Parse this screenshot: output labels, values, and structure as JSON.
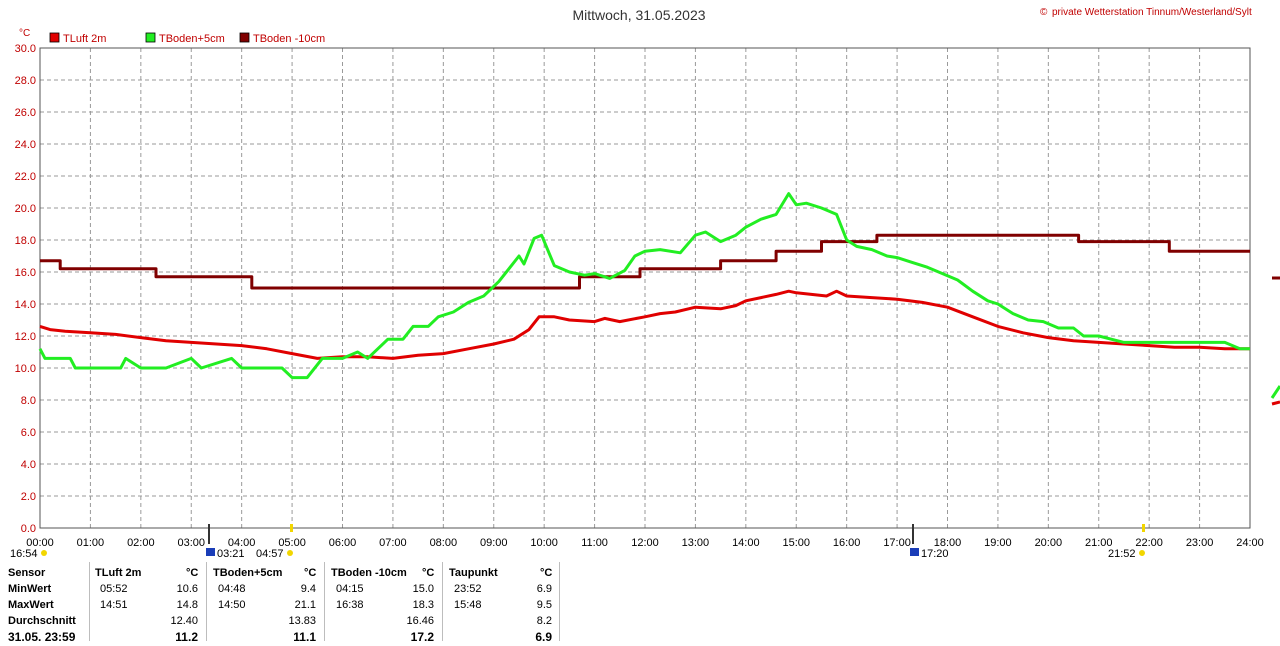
{
  "header": {
    "title": "Mittwoch, 31.05.2023",
    "copyright_symbol": "©",
    "credit": "private Wetterstation Tinnum/Westerland/Sylt"
  },
  "chart_data": {
    "type": "line",
    "y_unit": "°C",
    "ylim": [
      0,
      30
    ],
    "y_ticks": [
      "0.0",
      "2.0",
      "4.0",
      "6.0",
      "8.0",
      "10.0",
      "12.0",
      "14.0",
      "16.0",
      "18.0",
      "20.0",
      "22.0",
      "24.0",
      "26.0",
      "28.0",
      "30.0"
    ],
    "x_ticks": [
      "00:00",
      "01:00",
      "02:00",
      "03:00",
      "04:00",
      "05:00",
      "06:00",
      "07:00",
      "08:00",
      "09:00",
      "10:00",
      "11:00",
      "12:00",
      "13:00",
      "14:00",
      "15:00",
      "16:00",
      "17:00",
      "18:00",
      "19:00",
      "20:00",
      "21:00",
      "22:00",
      "23:00",
      "24:00"
    ],
    "xlim": [
      0,
      24
    ],
    "grid": true,
    "legend_placement": "top-left",
    "series": [
      {
        "name": "TLuft 2m",
        "color": "#e00000",
        "x": [
          0.0,
          0.2,
          0.5,
          1.0,
          1.5,
          2.0,
          2.5,
          3.0,
          3.5,
          4.0,
          4.5,
          5.0,
          5.5,
          6.0,
          6.5,
          7.0,
          7.5,
          8.0,
          8.5,
          9.0,
          9.4,
          9.7,
          9.9,
          10.2,
          10.5,
          11.0,
          11.2,
          11.5,
          12.0,
          12.3,
          12.6,
          13.0,
          13.5,
          13.8,
          14.0,
          14.3,
          14.6,
          14.85,
          15.0,
          15.3,
          15.6,
          15.8,
          16.0,
          16.5,
          17.0,
          17.5,
          18.0,
          18.5,
          19.0,
          19.5,
          20.0,
          20.5,
          21.0,
          21.5,
          22.0,
          22.5,
          23.0,
          23.5,
          24.0
        ],
        "y": [
          12.6,
          12.4,
          12.3,
          12.2,
          12.1,
          11.9,
          11.7,
          11.6,
          11.5,
          11.4,
          11.2,
          10.9,
          10.6,
          10.7,
          10.7,
          10.6,
          10.8,
          10.9,
          11.2,
          11.5,
          11.8,
          12.4,
          13.2,
          13.2,
          13.0,
          12.9,
          13.1,
          12.9,
          13.2,
          13.4,
          13.5,
          13.8,
          13.7,
          13.9,
          14.2,
          14.4,
          14.6,
          14.8,
          14.7,
          14.6,
          14.5,
          14.8,
          14.5,
          14.4,
          14.3,
          14.1,
          13.8,
          13.2,
          12.6,
          12.2,
          11.9,
          11.7,
          11.6,
          11.5,
          11.4,
          11.3,
          11.3,
          11.2,
          11.2
        ]
      },
      {
        "name": "TBoden+5cm",
        "color": "#22ee22",
        "x": [
          0.0,
          0.1,
          0.6,
          0.7,
          1.6,
          1.7,
          2.0,
          2.5,
          3.0,
          3.2,
          3.8,
          4.0,
          4.8,
          5.0,
          5.3,
          5.6,
          6.0,
          6.3,
          6.5,
          6.9,
          7.2,
          7.4,
          7.7,
          7.9,
          8.2,
          8.5,
          8.8,
          9.1,
          9.3,
          9.5,
          9.6,
          9.8,
          9.95,
          10.2,
          10.5,
          10.8,
          11.0,
          11.3,
          11.6,
          11.8,
          12.0,
          12.3,
          12.7,
          13.0,
          13.2,
          13.5,
          13.8,
          14.0,
          14.3,
          14.6,
          14.85,
          15.0,
          15.2,
          15.5,
          15.8,
          16.0,
          16.2,
          16.5,
          16.8,
          17.0,
          17.3,
          17.6,
          17.9,
          18.2,
          18.5,
          18.8,
          19.0,
          19.3,
          19.6,
          19.9,
          20.2,
          20.5,
          20.7,
          21.0,
          21.5,
          22.0,
          22.5,
          23.0,
          23.5,
          23.8,
          24.0
        ],
        "y": [
          11.2,
          10.6,
          10.6,
          10.0,
          10.0,
          10.6,
          10.0,
          10.0,
          10.6,
          10.0,
          10.6,
          10.0,
          10.0,
          9.4,
          9.4,
          10.6,
          10.6,
          11.0,
          10.6,
          11.8,
          11.8,
          12.6,
          12.6,
          13.2,
          13.5,
          14.1,
          14.5,
          15.4,
          16.2,
          17.0,
          16.5,
          18.1,
          18.3,
          16.4,
          16.0,
          15.8,
          15.9,
          15.6,
          16.1,
          17.0,
          17.3,
          17.4,
          17.2,
          18.3,
          18.5,
          17.9,
          18.3,
          18.8,
          19.3,
          19.6,
          20.9,
          20.2,
          20.3,
          20.0,
          19.6,
          18.0,
          17.6,
          17.4,
          17.0,
          16.9,
          16.6,
          16.3,
          15.9,
          15.5,
          14.8,
          14.2,
          14.0,
          13.4,
          13.0,
          12.9,
          12.5,
          12.5,
          12.0,
          12.0,
          11.6,
          11.6,
          11.6,
          11.6,
          11.6,
          11.2,
          11.2
        ]
      },
      {
        "name": "TBoden -10cm",
        "color": "#800000",
        "x": [
          0.0,
          0.4,
          0.4,
          2.3,
          2.3,
          4.2,
          4.2,
          10.7,
          10.7,
          11.9,
          11.9,
          13.5,
          13.5,
          14.6,
          14.6,
          15.5,
          15.5,
          16.6,
          16.6,
          20.6,
          20.6,
          22.4,
          22.4,
          24.0
        ],
        "y": [
          16.7,
          16.7,
          16.2,
          16.2,
          15.7,
          15.7,
          15.0,
          15.0,
          15.7,
          15.7,
          16.2,
          16.2,
          16.7,
          16.7,
          17.3,
          17.3,
          17.9,
          17.9,
          18.3,
          18.3,
          17.9,
          17.9,
          17.3,
          17.3
        ]
      }
    ]
  },
  "events": {
    "sunrise_label": "04:57",
    "sunset_label": "21:52",
    "moon_phase_1_label": "03:21",
    "moon_phase_2_label": "17:20",
    "day_length_label": "16:54"
  },
  "table": {
    "headers": [
      "Sensor",
      "TLuft 2m",
      "°C",
      "TBoden+5cm",
      "°C",
      "TBoden -10cm",
      "°C",
      "Taupunkt",
      "°C"
    ],
    "rows": [
      {
        "label": "MinWert",
        "t1": "05:52",
        "v1": "10.6",
        "t2": "04:48",
        "v2": "9.4",
        "t3": "04:15",
        "v3": "15.0",
        "t4": "23:52",
        "v4": "6.9"
      },
      {
        "label": "MaxWert",
        "t1": "14:51",
        "v1": "14.8",
        "t2": "14:50",
        "v2": "21.1",
        "t3": "16:38",
        "v3": "18.3",
        "t4": "15:48",
        "v4": "9.5"
      },
      {
        "label": "Durchschnitt",
        "t1": "",
        "v1": "12.40",
        "t2": "",
        "v2": "13.83",
        "t3": "",
        "v3": "16.46",
        "t4": "",
        "v4": "8.2"
      },
      {
        "label": "31.05. 23:59",
        "t1": "",
        "v1": "11.2",
        "t2": "",
        "v2": "11.1",
        "t3": "",
        "v3": "17.2",
        "t4": "",
        "v4": "6.9"
      }
    ]
  }
}
